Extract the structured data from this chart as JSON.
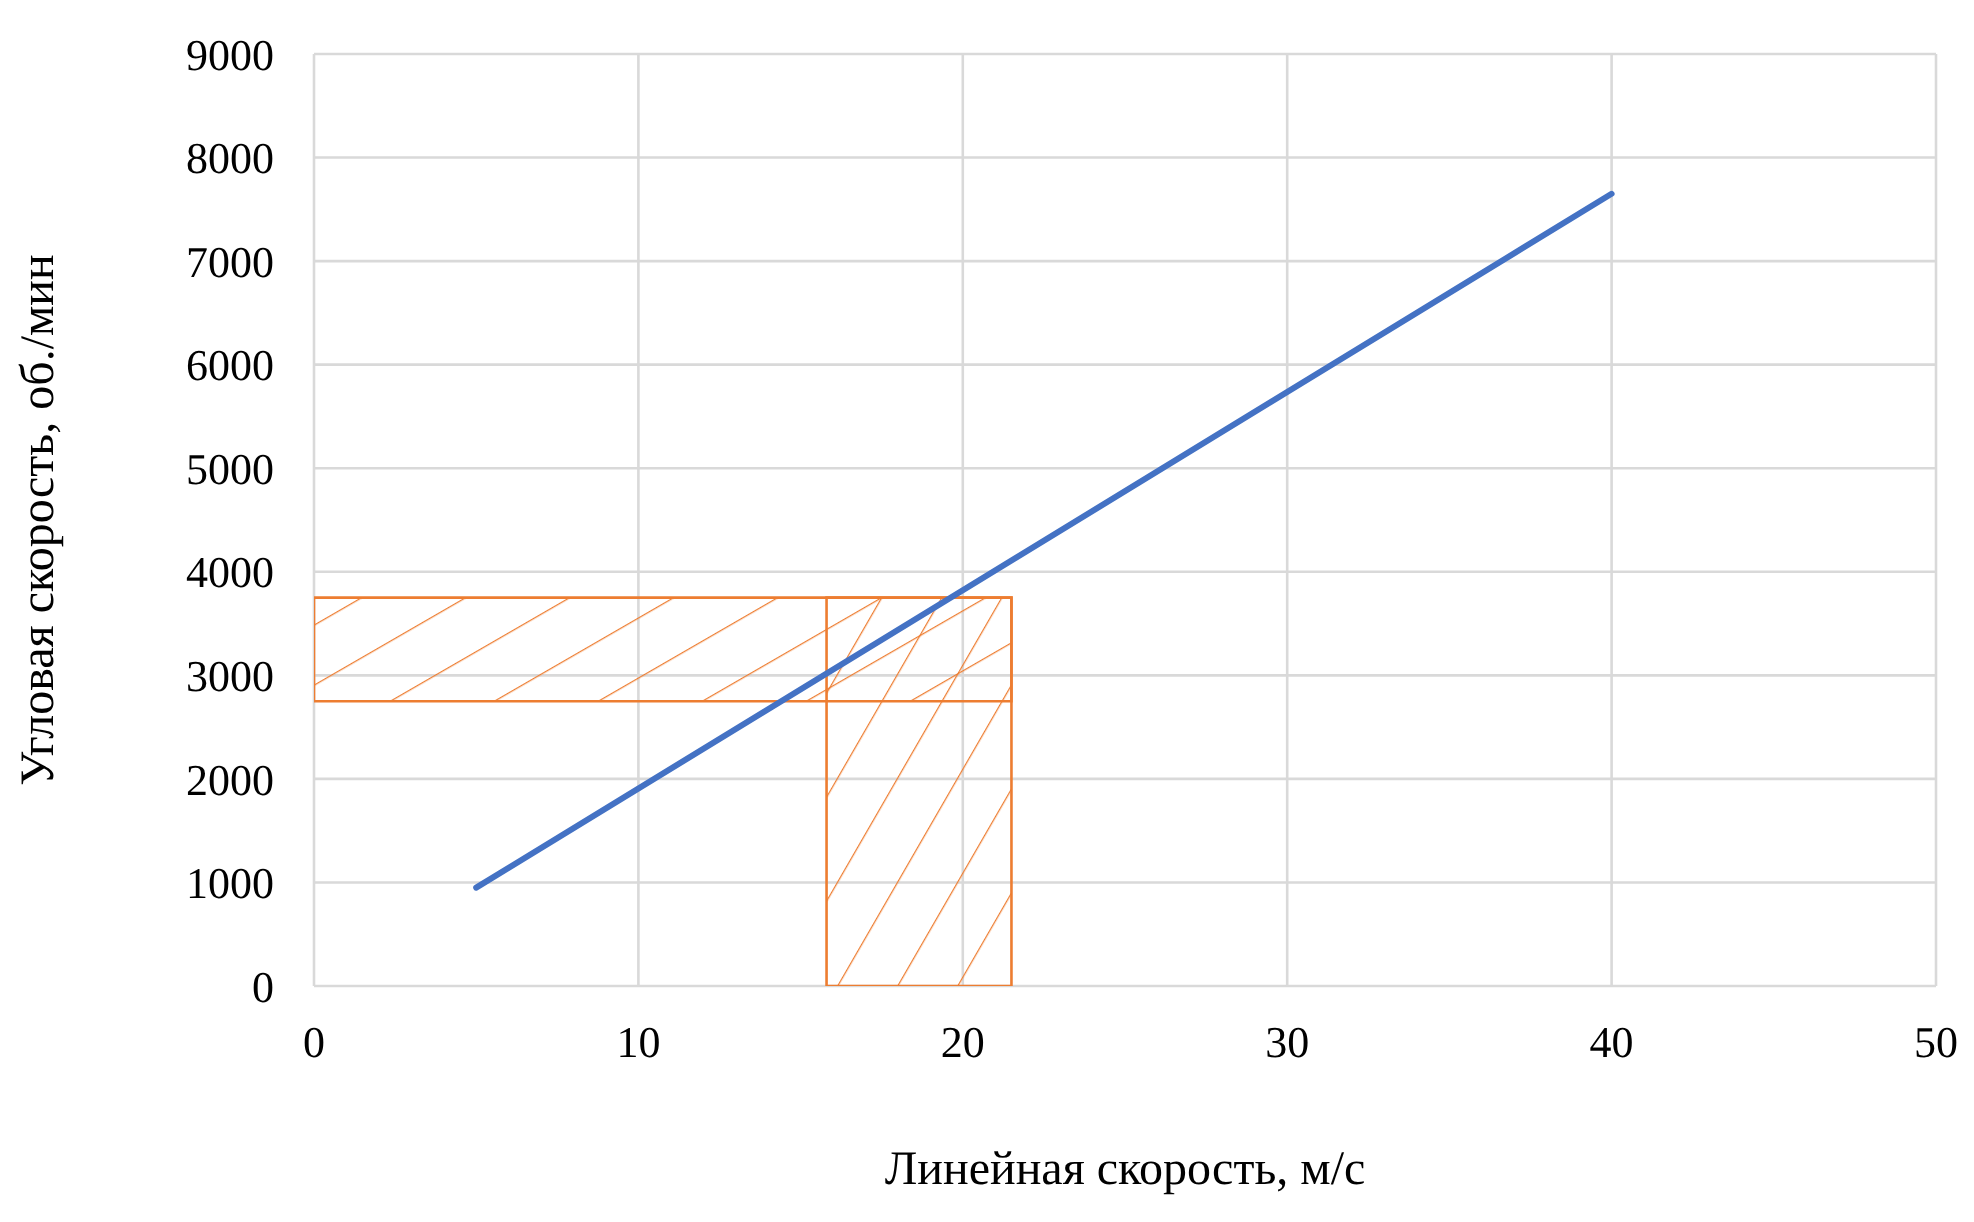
{
  "chart_data": {
    "type": "line",
    "xlabel": "Линейная скорость, м/с",
    "ylabel": "Угловая скорость, об./мин",
    "x": [
      5,
      40
    ],
    "series": [
      {
        "color": "#4472c4",
        "values": [
          950,
          7650
        ]
      }
    ],
    "xlim": [
      0,
      50
    ],
    "xticks": [
      0,
      10,
      20,
      30,
      40,
      50
    ],
    "ylim": [
      0,
      9000
    ],
    "yticks": [
      0,
      1000,
      2000,
      3000,
      4000,
      5000,
      6000,
      7000,
      8000,
      9000
    ],
    "grid": true,
    "bands": [
      {
        "axis": "y",
        "from": 2750,
        "to": 3750,
        "color": "#ed7d31"
      },
      {
        "axis": "x",
        "from": 15.8,
        "to": 21.5,
        "color": "#ed7d31"
      }
    ]
  }
}
